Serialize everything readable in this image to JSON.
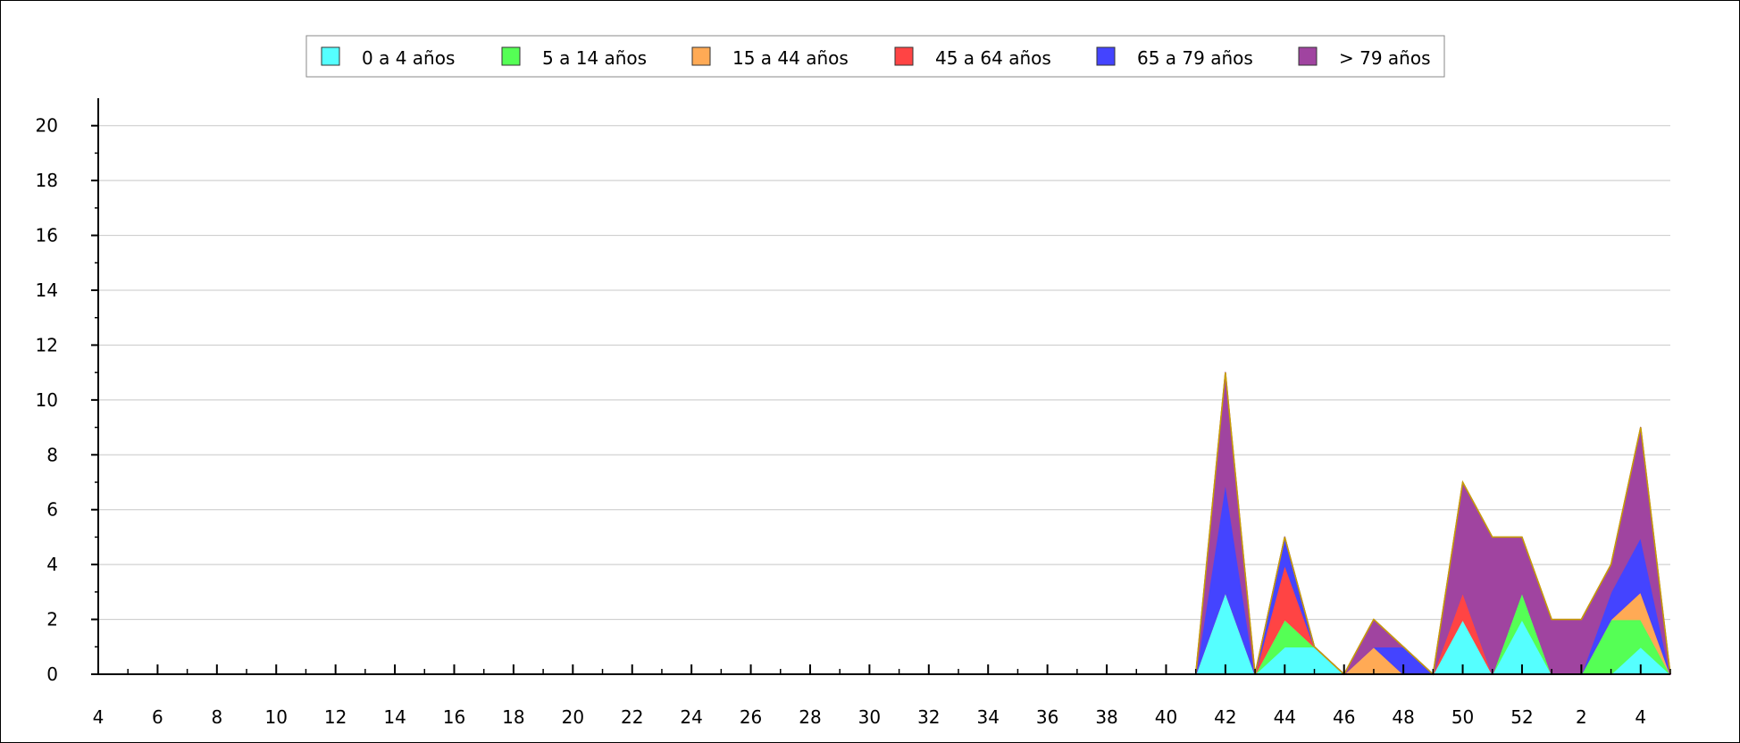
{
  "chart_data": {
    "type": "area",
    "stacked": true,
    "legend_position": "top",
    "grid": true,
    "ylim": [
      0,
      21
    ],
    "y_ticks": [
      "0",
      "2",
      "4",
      "6",
      "8",
      "10",
      "12",
      "14",
      "16",
      "18",
      "20"
    ],
    "x_tick_labels": [
      "4",
      "6",
      "8",
      "10",
      "12",
      "14",
      "16",
      "18",
      "20",
      "22",
      "24",
      "26",
      "28",
      "30",
      "32",
      "34",
      "36",
      "38",
      "40",
      "42",
      "44",
      "46",
      "48",
      "50",
      "52",
      "2",
      "4"
    ],
    "x": [
      "4",
      "5",
      "6",
      "7",
      "8",
      "9",
      "10",
      "11",
      "12",
      "13",
      "14",
      "15",
      "16",
      "17",
      "18",
      "19",
      "20",
      "21",
      "22",
      "23",
      "24",
      "25",
      "26",
      "27",
      "28",
      "29",
      "30",
      "31",
      "32",
      "33",
      "34",
      "35",
      "36",
      "37",
      "38",
      "39",
      "40",
      "41",
      "42",
      "43",
      "44",
      "45",
      "46",
      "47",
      "48",
      "49",
      "50",
      "51",
      "52",
      "53",
      "1",
      "2",
      "3",
      "4"
    ],
    "series": [
      {
        "name": "0 a 4 años",
        "color": "#55ffff",
        "values": [
          0,
          0,
          0,
          0,
          0,
          0,
          0,
          0,
          0,
          0,
          0,
          0,
          0,
          0,
          0,
          0,
          0,
          0,
          0,
          0,
          0,
          0,
          0,
          0,
          0,
          0,
          0,
          0,
          0,
          0,
          0,
          0,
          0,
          0,
          0,
          0,
          0,
          0,
          3,
          0,
          1,
          1,
          0,
          0,
          0,
          0,
          2,
          0,
          2,
          0,
          0,
          0,
          1,
          0
        ]
      },
      {
        "name": "5 a 14 años",
        "color": "#55ff55",
        "values": [
          0,
          0,
          0,
          0,
          0,
          0,
          0,
          0,
          0,
          0,
          0,
          0,
          0,
          0,
          0,
          0,
          0,
          0,
          0,
          0,
          0,
          0,
          0,
          0,
          0,
          0,
          0,
          0,
          0,
          0,
          0,
          0,
          0,
          0,
          0,
          0,
          0,
          0,
          0,
          0,
          1,
          0,
          0,
          0,
          0,
          0,
          0,
          0,
          1,
          0,
          0,
          2,
          1,
          0
        ]
      },
      {
        "name": "15 a 44 años",
        "color": "#ffaa55",
        "values": [
          0,
          0,
          0,
          0,
          0,
          0,
          0,
          0,
          0,
          0,
          0,
          0,
          0,
          0,
          0,
          0,
          0,
          0,
          0,
          0,
          0,
          0,
          0,
          0,
          0,
          0,
          0,
          0,
          0,
          0,
          0,
          0,
          0,
          0,
          0,
          0,
          0,
          0,
          0,
          0,
          0,
          0,
          0,
          1,
          0,
          0,
          0,
          0,
          0,
          0,
          0,
          0,
          1,
          0
        ]
      },
      {
        "name": "45 a 64 años",
        "color": "#ff4444",
        "values": [
          0,
          0,
          0,
          0,
          0,
          0,
          0,
          0,
          0,
          0,
          0,
          0,
          0,
          0,
          0,
          0,
          0,
          0,
          0,
          0,
          0,
          0,
          0,
          0,
          0,
          0,
          0,
          0,
          0,
          0,
          0,
          0,
          0,
          0,
          0,
          0,
          0,
          0,
          0,
          0,
          2,
          0,
          0,
          0,
          0,
          0,
          1,
          0,
          0,
          0,
          0,
          0,
          0,
          0
        ]
      },
      {
        "name": "65 a 79 años",
        "color": "#4444ff",
        "values": [
          0,
          0,
          0,
          0,
          0,
          0,
          0,
          0,
          0,
          0,
          0,
          0,
          0,
          0,
          0,
          0,
          0,
          0,
          0,
          0,
          0,
          0,
          0,
          0,
          0,
          0,
          0,
          0,
          0,
          0,
          0,
          0,
          0,
          0,
          0,
          0,
          0,
          0,
          4,
          0,
          1,
          0,
          0,
          0,
          1,
          0,
          0,
          0,
          0,
          0,
          0,
          1,
          2,
          0
        ]
      },
      {
        "name": "> 79 años",
        "color": "#a044a0",
        "values": [
          0,
          0,
          0,
          0,
          0,
          0,
          0,
          0,
          0,
          0,
          0,
          0,
          0,
          0,
          0,
          0,
          0,
          0,
          0,
          0,
          0,
          0,
          0,
          0,
          0,
          0,
          0,
          0,
          0,
          0,
          0,
          0,
          0,
          0,
          0,
          0,
          0,
          0,
          4,
          0,
          0,
          0,
          0,
          1,
          0,
          0,
          4,
          5,
          2,
          2,
          2,
          1,
          4,
          0
        ]
      }
    ]
  }
}
